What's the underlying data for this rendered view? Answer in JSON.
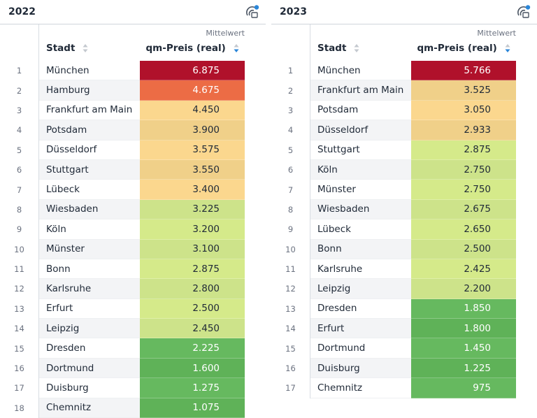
{
  "colors": {
    "very_high": "#b0112b",
    "high": "#ec6c45",
    "upper": "#fbd78e",
    "upper_alt": "#f0d089",
    "mid": "#d5ea8a",
    "mid_alt": "#cde38a",
    "low": "#66b95f",
    "low_alt": "#5fb258",
    "accent": "#2a86d8"
  },
  "tables": [
    {
      "title": "2022",
      "col_city": "Stadt",
      "col_group": "Mittelwert",
      "col_price": "qm-Preis (real)",
      "rows": [
        {
          "rank": "1",
          "city": "München",
          "price": "6.875",
          "bg": "#b0112b",
          "fg": "#ffffff"
        },
        {
          "rank": "2",
          "city": "Hamburg",
          "price": "4.675",
          "bg": "#ec6c45",
          "fg": "#ffffff"
        },
        {
          "rank": "3",
          "city": "Frankfurt am Main",
          "price": "4.450",
          "bg": "#fbd78e",
          "fg": "#1f2937"
        },
        {
          "rank": "4",
          "city": "Potsdam",
          "price": "3.900",
          "bg": "#f0d089",
          "fg": "#1f2937"
        },
        {
          "rank": "5",
          "city": "Düsseldorf",
          "price": "3.575",
          "bg": "#fbd78e",
          "fg": "#1f2937"
        },
        {
          "rank": "6",
          "city": "Stuttgart",
          "price": "3.550",
          "bg": "#f0d089",
          "fg": "#1f2937"
        },
        {
          "rank": "7",
          "city": "Lübeck",
          "price": "3.400",
          "bg": "#fbd78e",
          "fg": "#1f2937"
        },
        {
          "rank": "8",
          "city": "Wiesbaden",
          "price": "3.225",
          "bg": "#cde38a",
          "fg": "#1f2937"
        },
        {
          "rank": "9",
          "city": "Köln",
          "price": "3.200",
          "bg": "#d5ea8a",
          "fg": "#1f2937"
        },
        {
          "rank": "10",
          "city": "Münster",
          "price": "3.100",
          "bg": "#cde38a",
          "fg": "#1f2937"
        },
        {
          "rank": "11",
          "city": "Bonn",
          "price": "2.875",
          "bg": "#d5ea8a",
          "fg": "#1f2937"
        },
        {
          "rank": "12",
          "city": "Karlsruhe",
          "price": "2.800",
          "bg": "#cde38a",
          "fg": "#1f2937"
        },
        {
          "rank": "13",
          "city": "Erfurt",
          "price": "2.500",
          "bg": "#d5ea8a",
          "fg": "#1f2937"
        },
        {
          "rank": "14",
          "city": "Leipzig",
          "price": "2.450",
          "bg": "#cde38a",
          "fg": "#1f2937"
        },
        {
          "rank": "15",
          "city": "Dresden",
          "price": "2.225",
          "bg": "#66b95f",
          "fg": "#ffffff"
        },
        {
          "rank": "16",
          "city": "Dortmund",
          "price": "1.600",
          "bg": "#5fb258",
          "fg": "#ffffff"
        },
        {
          "rank": "17",
          "city": "Duisburg",
          "price": "1.275",
          "bg": "#66b95f",
          "fg": "#ffffff"
        },
        {
          "rank": "18",
          "city": "Chemnitz",
          "price": "1.075",
          "bg": "#5fb258",
          "fg": "#ffffff"
        }
      ]
    },
    {
      "title": "2023",
      "col_city": "Stadt",
      "col_group": "Mittelwert",
      "col_price": "qm-Preis (real)",
      "rows": [
        {
          "rank": "1",
          "city": "München",
          "price": "5.766",
          "bg": "#b0112b",
          "fg": "#ffffff"
        },
        {
          "rank": "2",
          "city": "Frankfurt am Main",
          "price": "3.525",
          "bg": "#f0d089",
          "fg": "#1f2937"
        },
        {
          "rank": "3",
          "city": "Potsdam",
          "price": "3.050",
          "bg": "#fbd78e",
          "fg": "#1f2937"
        },
        {
          "rank": "4",
          "city": "Düsseldorf",
          "price": "2.933",
          "bg": "#f0d089",
          "fg": "#1f2937"
        },
        {
          "rank": "5",
          "city": "Stuttgart",
          "price": "2.875",
          "bg": "#d5ea8a",
          "fg": "#1f2937"
        },
        {
          "rank": "6",
          "city": "Köln",
          "price": "2.750",
          "bg": "#cde38a",
          "fg": "#1f2937"
        },
        {
          "rank": "7",
          "city": "Münster",
          "price": "2.750",
          "bg": "#d5ea8a",
          "fg": "#1f2937"
        },
        {
          "rank": "8",
          "city": "Wiesbaden",
          "price": "2.675",
          "bg": "#cde38a",
          "fg": "#1f2937"
        },
        {
          "rank": "9",
          "city": "Lübeck",
          "price": "2.650",
          "bg": "#d5ea8a",
          "fg": "#1f2937"
        },
        {
          "rank": "10",
          "city": "Bonn",
          "price": "2.500",
          "bg": "#cde38a",
          "fg": "#1f2937"
        },
        {
          "rank": "11",
          "city": "Karlsruhe",
          "price": "2.425",
          "bg": "#d5ea8a",
          "fg": "#1f2937"
        },
        {
          "rank": "12",
          "city": "Leipzig",
          "price": "2.200",
          "bg": "#cde38a",
          "fg": "#1f2937"
        },
        {
          "rank": "13",
          "city": "Dresden",
          "price": "1.850",
          "bg": "#66b95f",
          "fg": "#ffffff"
        },
        {
          "rank": "14",
          "city": "Erfurt",
          "price": "1.800",
          "bg": "#5fb258",
          "fg": "#ffffff"
        },
        {
          "rank": "15",
          "city": "Dortmund",
          "price": "1.450",
          "bg": "#66b95f",
          "fg": "#ffffff"
        },
        {
          "rank": "16",
          "city": "Duisburg",
          "price": "1.225",
          "bg": "#5fb258",
          "fg": "#ffffff"
        },
        {
          "rank": "17",
          "city": "Chemnitz",
          "price": "975",
          "bg": "#66b95f",
          "fg": "#ffffff"
        }
      ]
    }
  ]
}
